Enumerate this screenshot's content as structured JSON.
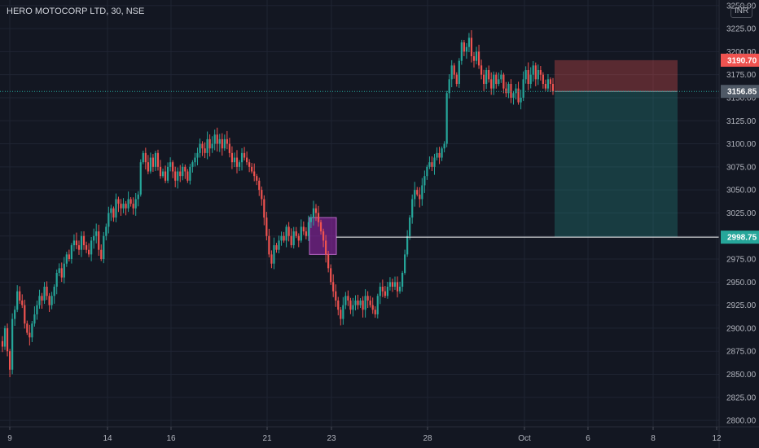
{
  "header": {
    "title": "HERO MOTOCORP LTD, 30, NSE",
    "currency": "INR"
  },
  "colors": {
    "background": "#131722",
    "up": "#26a69a",
    "down": "#ef5350",
    "grid": "#1f2433"
  },
  "chart_data": {
    "type": "candlestick",
    "title": "HERO MOTOCORP LTD, 30, NSE",
    "xlabel": "",
    "ylabel": "",
    "ylim": [
      2793,
      3256
    ],
    "y_ticks": [
      2800,
      2825,
      2850,
      2875,
      2900,
      2925,
      2950,
      2975,
      3000,
      3025,
      3050,
      3075,
      3100,
      3125,
      3150,
      3175,
      3200,
      3225,
      3250
    ],
    "y_tick_labels": [
      "2800.00",
      "2825.00",
      "2850.00",
      "2875.00",
      "2900.00",
      "2925.00",
      "2950.00",
      "2975.00",
      "3000.00",
      "3025.00",
      "3050.00",
      "3075.00",
      "3100.00",
      "3125.00",
      "3150.00",
      "3175.00",
      "3200.00",
      "3225.00",
      "3250.00"
    ],
    "x_ticks": [
      "9",
      "14",
      "16",
      "21",
      "23",
      "28",
      "Oct",
      "6",
      "8",
      "12"
    ],
    "grid": true,
    "current_price": 3156.85,
    "price_tags": [
      {
        "label": "3190.70",
        "value": 3190.7,
        "color": "#ef5350"
      },
      {
        "label": "3156.85",
        "value": 3156.85,
        "color": "#4f5966"
      },
      {
        "label": "2998.75",
        "value": 2998.75,
        "color": "#26a69a"
      }
    ],
    "horizontal_line": {
      "value": 2998.75,
      "color": "#ffffff"
    },
    "position": {
      "entry": 3156.85,
      "stop": 3190.7,
      "target": 2998.75
    },
    "highlight_range": {
      "low": 2980,
      "high": 3020
    },
    "closes": [
      2880,
      2900,
      2875,
      2855,
      2910,
      2920,
      2940,
      2930,
      2925,
      2905,
      2895,
      2890,
      2905,
      2915,
      2925,
      2935,
      2930,
      2945,
      2935,
      2925,
      2935,
      2945,
      2960,
      2965,
      2955,
      2970,
      2980,
      2975,
      2990,
      2995,
      2990,
      2985,
      3000,
      2990,
      2985,
      2980,
      2995,
      3000,
      3005,
      2985,
      2975,
      3000,
      3010,
      3025,
      3030,
      3020,
      3040,
      3035,
      3030,
      3035,
      3030,
      3040,
      3035,
      3030,
      3040,
      3045,
      3080,
      3090,
      3080,
      3070,
      3085,
      3075,
      3090,
      3075,
      3065,
      3070,
      3060,
      3075,
      3080,
      3070,
      3060,
      3070,
      3065,
      3075,
      3070,
      3060,
      3075,
      3080,
      3085,
      3090,
      3100,
      3095,
      3090,
      3105,
      3095,
      3100,
      3110,
      3100,
      3105,
      3095,
      3105,
      3100,
      3090,
      3080,
      3085,
      3075,
      3080,
      3090,
      3085,
      3080,
      3075,
      3070,
      3065,
      3060,
      3050,
      3040,
      3020,
      3000,
      2980,
      2970,
      2990,
      2985,
      2995,
      3000,
      2995,
      3010,
      3000,
      2990,
      3005,
      3000,
      2995,
      3010,
      3005,
      3000,
      3015,
      3020,
      3030,
      3025,
      3015,
      3005,
      2995,
      2980,
      2965,
      2950,
      2940,
      2930,
      2920,
      2910,
      2925,
      2935,
      2930,
      2920,
      2925,
      2930,
      2925,
      2930,
      2920,
      2935,
      2930,
      2925,
      2920,
      2915,
      2935,
      2945,
      2940,
      2935,
      2945,
      2950,
      2945,
      2950,
      2940,
      2945,
      2960,
      2980,
      3000,
      3020,
      3040,
      3050,
      3045,
      3040,
      3055,
      3065,
      3075,
      3080,
      3075,
      3085,
      3090,
      3085,
      3095,
      3100,
      3155,
      3170,
      3185,
      3175,
      3165,
      3190,
      3210,
      3200,
      3205,
      3215,
      3195,
      3190,
      3200,
      3185,
      3175,
      3165,
      3180,
      3170,
      3160,
      3175,
      3165,
      3170,
      3175,
      3160,
      3155,
      3165,
      3150,
      3155,
      3160,
      3145,
      3150,
      3170,
      3180,
      3165,
      3175,
      3185,
      3170,
      3180,
      3175,
      3165,
      3160,
      3170,
      3165,
      3156.85
    ]
  }
}
